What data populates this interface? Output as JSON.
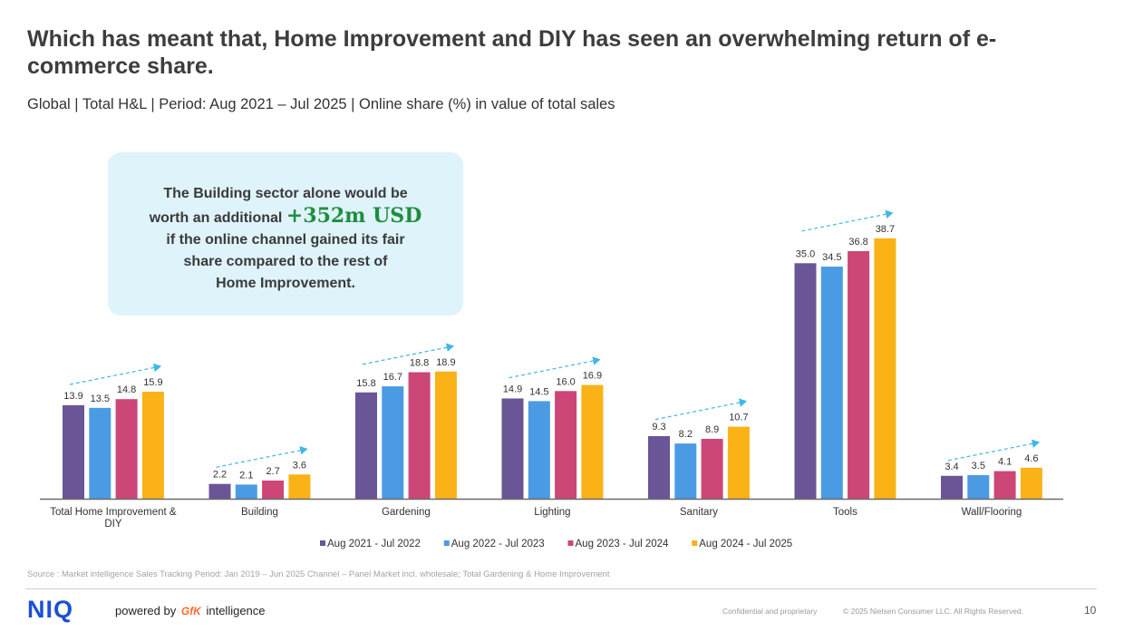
{
  "header": {
    "title": "Which has meant that, Home Improvement and DIY has seen an overwhelming return of e-commerce share.",
    "subtitle": "Global | Total H&L | Period: Aug 2021 – Jul 2025 | Online share (%) in value of total sales"
  },
  "callout": {
    "line1": "The Building sector alone would be",
    "line2_prefix": "worth an additional",
    "highlight": "+352m USD",
    "line3": "if the online channel gained its fair",
    "line4": "share compared to the rest of",
    "line5": "Home Improvement."
  },
  "chart_data": {
    "type": "bar",
    "categories": [
      "Total Home Improvement & DIY",
      "Building",
      "Gardening",
      "Lighting",
      "Sanitary",
      "Tools",
      "Wall/Flooring"
    ],
    "series": [
      {
        "name": "Aug 2021 - Jul 2022",
        "color": "#6a5597",
        "values": [
          13.9,
          2.2,
          15.8,
          14.9,
          9.3,
          35.0,
          3.4
        ]
      },
      {
        "name": "Aug 2022 - Jul 2023",
        "color": "#4a9be4",
        "values": [
          13.5,
          2.1,
          16.7,
          14.5,
          8.2,
          34.5,
          3.5
        ]
      },
      {
        "name": "Aug 2023 - Jul 2024",
        "color": "#cc4677",
        "values": [
          14.8,
          2.7,
          18.8,
          16.0,
          8.9,
          36.8,
          4.1
        ]
      },
      {
        "name": "Aug 2024 - Jul 2025",
        "color": "#fbb216",
        "values": [
          15.9,
          3.6,
          18.9,
          16.9,
          10.7,
          38.7,
          4.6
        ]
      }
    ],
    "value_format_decimals": 1,
    "trend_arrow_color": "#3fb8e8",
    "ylim": [
      0,
      40
    ],
    "legend_position": "bottom",
    "grid": false
  },
  "footer": {
    "source": "Source : Market intelligence Sales Tracking Period: Jan 2019 – Jun 2025 Channel – Panel Market incl. wholesale; Total Gardening & Home Improvement",
    "logo": "NIQ",
    "powered_prefix": "powered by",
    "gfk": "GfK",
    "powered_suffix": "intelligence",
    "confidential": "Confidential and proprietary",
    "copyright": "© 2025 Nielsen Consumer LLC. All Rights Reserved.",
    "page_number": "10"
  }
}
